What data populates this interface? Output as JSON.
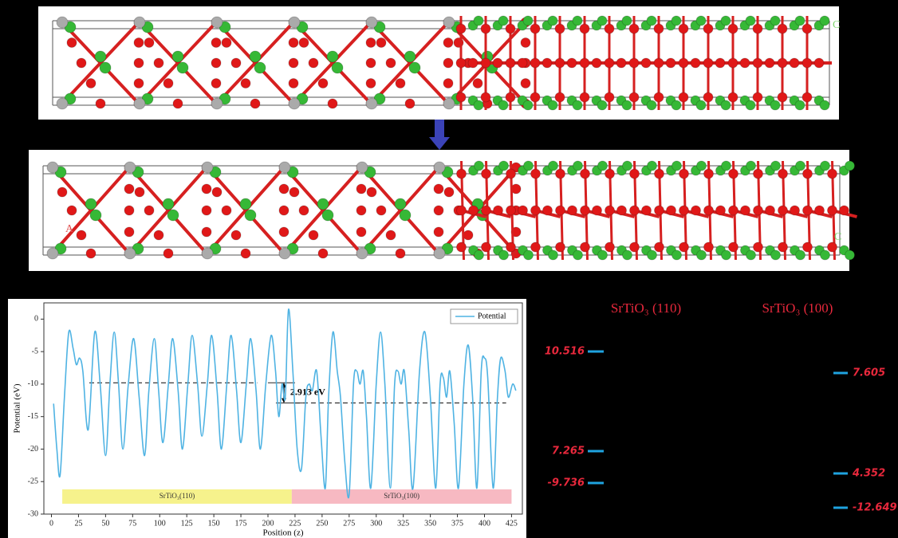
{
  "chart_data": {
    "type": "line",
    "x_label": "Position (z)",
    "y_label": "Potential (eV)",
    "x": [
      2,
      5,
      8,
      12,
      16,
      20,
      23,
      26,
      29,
      34,
      40,
      45,
      50,
      54,
      58,
      62,
      66,
      71,
      76,
      81,
      86,
      90,
      95,
      99,
      103,
      108,
      112,
      117,
      121,
      126,
      130,
      135,
      139,
      144,
      148,
      153,
      157,
      162,
      166,
      171,
      175,
      180,
      184,
      189,
      193,
      198,
      203,
      207,
      210,
      213,
      216,
      219,
      223,
      227,
      231,
      235,
      238,
      241,
      245,
      249,
      253,
      256,
      260,
      264,
      267,
      271,
      275,
      279,
      282,
      285,
      288,
      291,
      295,
      300,
      304,
      308,
      313,
      317,
      320,
      323,
      326,
      330,
      334,
      340,
      345,
      350,
      355,
      359,
      362,
      365,
      368,
      372,
      376,
      381,
      385,
      389,
      393,
      397,
      400,
      403,
      408,
      412,
      415,
      419,
      422,
      426,
      429
    ],
    "series": [
      {
        "name": "Potential",
        "color": "#4fb3e3",
        "values": [
          -13,
          -20,
          -24,
          -12,
          -2,
          -4.5,
          -7,
          -6,
          -8,
          -17,
          -2,
          -10,
          -21,
          -10,
          -2,
          -10,
          -20,
          -10,
          -3,
          -12,
          -21,
          -11,
          -3,
          -11,
          -19,
          -10,
          -3,
          -11,
          -20,
          -10,
          -2.5,
          -10,
          -18,
          -10,
          -2.5,
          -11,
          -20,
          -10,
          -2.5,
          -11,
          -19,
          -10,
          -3,
          -11,
          -20,
          -10,
          -2.5,
          -8,
          -15,
          -10,
          -12,
          1.5,
          -8,
          -20,
          -23,
          -12,
          -10,
          -11,
          -8,
          -18,
          -26,
          -12,
          -2,
          -8,
          -12,
          -22,
          -27,
          -10,
          -8,
          -10,
          -8,
          -15,
          -26,
          -10,
          -2,
          -10,
          -26,
          -10,
          -8,
          -10,
          -8,
          -17,
          -26,
          -8,
          -2,
          -12,
          -26,
          -10,
          -9,
          -12,
          -8,
          -16,
          -26,
          -10,
          -4,
          -12,
          -26,
          -8,
          -6,
          -9,
          -26,
          -12,
          -6,
          -8,
          -12,
          -10,
          -11
        ]
      }
    ],
    "xlim": [
      -7,
      435
    ],
    "ylim": [
      -30,
      2.5
    ],
    "xticks": [
      0,
      25,
      50,
      75,
      100,
      125,
      150,
      175,
      200,
      225,
      250,
      275,
      300,
      325,
      350,
      375,
      400,
      425
    ],
    "yticks": [
      -30,
      -25,
      -20,
      -15,
      -10,
      -5,
      0
    ],
    "legend": "top-right",
    "reference_lines": [
      {
        "value": -9.8,
        "from": 35,
        "to": 190
      },
      {
        "value": -12.9,
        "from": 225,
        "to": 420
      }
    ],
    "annotation": "2.913 eV",
    "regions": [
      {
        "label": "SrTiO₃(110)",
        "from": 10,
        "to": 222,
        "color": "#f6f28c"
      },
      {
        "label": "SrTiO₃(100)",
        "from": 222,
        "to": 425,
        "color": "#f7b9c2"
      }
    ]
  },
  "energy_levels": {
    "left": {
      "title": "SrTiO₃ (110)",
      "levels": [
        "10.516",
        "7.265",
        "-9.736"
      ]
    },
    "right": {
      "title": "SrTiO₃ (100)",
      "levels": [
        "7.605",
        "4.352",
        "-12.649"
      ]
    }
  },
  "structures": {
    "top_labels": [
      "C"
    ],
    "bottom_labels": [
      "A",
      "C"
    ]
  }
}
